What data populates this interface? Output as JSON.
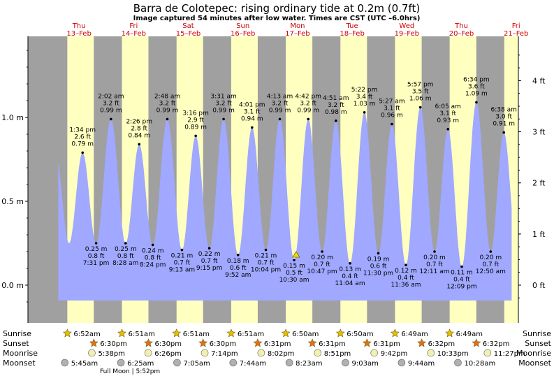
{
  "title": "Barra de Colotepec: rising  ordinary tide at 0.2m (0.7ft)",
  "subtitle": "Image captured 54 minutes after low water. Times are CST (UTC –6.0hrs)",
  "colors": {
    "day_band": "#ffffc0",
    "night_band": "#a0a0a0",
    "tide_fill": "#a0a8ff",
    "date_text": "#d00000",
    "sun_star": "#e0c000",
    "moon_circle": "#f0f0b0",
    "moonset_circle": "#b0b0b0"
  },
  "days": [
    {
      "name": "Thu",
      "date": "13–Feb"
    },
    {
      "name": "Fri",
      "date": "14–Feb"
    },
    {
      "name": "Sat",
      "date": "15–Feb"
    },
    {
      "name": "Sun",
      "date": "16–Feb"
    },
    {
      "name": "Mon",
      "date": "17–Feb"
    },
    {
      "name": "Tue",
      "date": "18–Feb"
    },
    {
      "name": "Wed",
      "date": "19–Feb"
    },
    {
      "name": "Thu",
      "date": "20–Feb"
    },
    {
      "name": "Fri",
      "date": "21–Feb"
    }
  ],
  "axes": {
    "left_ticks": [
      {
        "v": 0.0,
        "label": "0.0 m"
      },
      {
        "v": 0.5,
        "label": "0.5 m"
      },
      {
        "v": 1.0,
        "label": "1.0 m"
      }
    ],
    "right_ticks": [
      {
        "v": 0,
        "label": "0 ft"
      },
      {
        "v": 1,
        "label": "1 ft"
      },
      {
        "v": 2,
        "label": "2 ft"
      },
      {
        "v": 3,
        "label": "3 ft"
      },
      {
        "v": 4,
        "label": "4 ft"
      }
    ]
  },
  "chart_data": {
    "type": "area",
    "ylabel_left": "m",
    "ylabel_right": "ft",
    "ylim_m": [
      -0.12,
      1.48
    ],
    "current_level_m": 0.2,
    "extremes": [
      {
        "time": "1:34 pm",
        "day": 0,
        "m": 0.79,
        "ft": "2.6 ft",
        "m_label": "0.79 m",
        "type": "high"
      },
      {
        "time": "7:31 pm",
        "day": 0,
        "m": 0.25,
        "ft": "0.8 ft",
        "m_label": "0.25 m",
        "type": "low"
      },
      {
        "time": "2:02 am",
        "day": 1,
        "m": 0.99,
        "ft": "3.2 ft",
        "m_label": "0.99 m",
        "type": "high"
      },
      {
        "time": "8:28 am",
        "day": 1,
        "m": 0.25,
        "ft": "0.8 ft",
        "m_label": "0.25 m",
        "type": "low"
      },
      {
        "time": "2:26 pm",
        "day": 1,
        "m": 0.84,
        "ft": "2.8 ft",
        "m_label": "0.84 m",
        "type": "high"
      },
      {
        "time": "8:24 pm",
        "day": 1,
        "m": 0.24,
        "ft": "0.8 ft",
        "m_label": "0.24 m",
        "type": "low"
      },
      {
        "time": "2:48 am",
        "day": 2,
        "m": 0.99,
        "ft": "3.2 ft",
        "m_label": "0.99 m",
        "type": "high"
      },
      {
        "time": "9:13 am",
        "day": 2,
        "m": 0.21,
        "ft": "0.7 ft",
        "m_label": "0.21 m",
        "type": "low"
      },
      {
        "time": "3:16 pm",
        "day": 2,
        "m": 0.89,
        "ft": "2.9 ft",
        "m_label": "0.89 m",
        "type": "high"
      },
      {
        "time": "9:15 pm",
        "day": 2,
        "m": 0.22,
        "ft": "0.7 ft",
        "m_label": "0.22 m",
        "type": "low"
      },
      {
        "time": "3:31 am",
        "day": 3,
        "m": 0.99,
        "ft": "3.2 ft",
        "m_label": "0.99 m",
        "type": "high"
      },
      {
        "time": "9:52 am",
        "day": 3,
        "m": 0.18,
        "ft": "0.6 ft",
        "m_label": "0.18 m",
        "type": "low"
      },
      {
        "time": "4:01 pm",
        "day": 3,
        "m": 0.94,
        "ft": "3.1 ft",
        "m_label": "0.94 m",
        "type": "high"
      },
      {
        "time": "10:04 pm",
        "day": 3,
        "m": 0.21,
        "ft": "0.7 ft",
        "m_label": "0.21 m",
        "type": "low"
      },
      {
        "time": "4:13 am",
        "day": 4,
        "m": 0.99,
        "ft": "3.2 ft",
        "m_label": "0.99 m",
        "type": "high"
      },
      {
        "time": "10:30 am",
        "day": 4,
        "m": 0.15,
        "ft": "0.5 ft",
        "m_label": "0.15 m",
        "type": "low"
      },
      {
        "time": "4:42 pm",
        "day": 4,
        "m": 0.99,
        "ft": "3.2 ft",
        "m_label": "0.99 m",
        "type": "high"
      },
      {
        "time": "10:47 pm",
        "day": 4,
        "m": 0.2,
        "ft": "0.7 ft",
        "m_label": "0.20 m",
        "type": "low"
      },
      {
        "time": "4:51 am",
        "day": 5,
        "m": 0.98,
        "ft": "3.2 ft",
        "m_label": "0.98 m",
        "type": "high"
      },
      {
        "time": "11:04 am",
        "day": 5,
        "m": 0.13,
        "ft": "0.4 ft",
        "m_label": "0.13 m",
        "type": "low"
      },
      {
        "time": "5:22 pm",
        "day": 5,
        "m": 1.03,
        "ft": "3.4 ft",
        "m_label": "1.03 m",
        "type": "high"
      },
      {
        "time": "11:30 pm",
        "day": 5,
        "m": 0.19,
        "ft": "0.6 ft",
        "m_label": "0.19 m",
        "type": "low"
      },
      {
        "time": "5:27 am",
        "day": 6,
        "m": 0.96,
        "ft": "3.1 ft",
        "m_label": "0.96 m",
        "type": "high"
      },
      {
        "time": "11:36 am",
        "day": 6,
        "m": 0.12,
        "ft": "0.4 ft",
        "m_label": "0.12 m",
        "type": "low"
      },
      {
        "time": "5:57 pm",
        "day": 6,
        "m": 1.06,
        "ft": "3.5 ft",
        "m_label": "1.06 m",
        "type": "high"
      },
      {
        "time": "12:11 am",
        "day": 7,
        "m": 0.2,
        "ft": "0.7 ft",
        "m_label": "0.20 m",
        "type": "low"
      },
      {
        "time": "6:05 am",
        "day": 7,
        "m": 0.93,
        "ft": "3.1 ft",
        "m_label": "0.93 m",
        "type": "high"
      },
      {
        "time": "12:09 pm",
        "day": 7,
        "m": 0.11,
        "ft": "0.4 ft",
        "m_label": "0.11 m",
        "type": "low"
      },
      {
        "time": "6:34 pm",
        "day": 7,
        "m": 1.09,
        "ft": "3.6 ft",
        "m_label": "1.09 m",
        "type": "high"
      },
      {
        "time": "12:50 am",
        "day": 8,
        "m": 0.2,
        "ft": "0.7 ft",
        "m_label": "0.20 m",
        "type": "low"
      },
      {
        "time": "6:38 am",
        "day": 8,
        "m": 0.91,
        "ft": "3.0 ft",
        "m_label": "0.91 m",
        "type": "high"
      }
    ]
  },
  "rows": {
    "sunrise": {
      "label": "Sunrise",
      "times": [
        "6:52am",
        "6:51am",
        "6:51am",
        "6:51am",
        "6:50am",
        "6:50am",
        "6:49am",
        "6:49am"
      ]
    },
    "sunset": {
      "label": "Sunset",
      "times": [
        "6:30pm",
        "6:30pm",
        "6:30pm",
        "6:31pm",
        "6:31pm",
        "6:31pm",
        "6:32pm",
        "6:32pm"
      ]
    },
    "moonrise": {
      "label": "Moonrise",
      "times": [
        "5:38pm",
        "6:26pm",
        "7:14pm",
        "8:02pm",
        "8:51pm",
        "9:42pm",
        "10:33pm",
        "11:27pm"
      ]
    },
    "moonset": {
      "label": "Moonset",
      "times": [
        "5:45am",
        "6:25am",
        "7:05am",
        "7:44am",
        "8:23am",
        "9:03am",
        "9:44am",
        "10:28am"
      ]
    }
  },
  "full_moon": "Full Moon | 5:52pm"
}
